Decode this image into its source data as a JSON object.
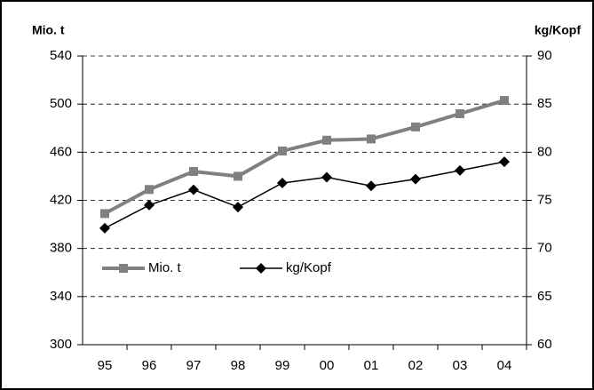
{
  "chart_data": {
    "type": "line",
    "y_label": "Mio. t",
    "y2_label": "kg/Kopf",
    "categories": [
      "95",
      "96",
      "97",
      "98",
      "99",
      "00",
      "01",
      "02",
      "03",
      "04"
    ],
    "series": [
      {
        "name": "Mio. t",
        "color": "#808080",
        "marker": "square",
        "values": [
          409,
          429,
          444,
          440,
          461,
          470,
          471,
          481,
          492,
          503
        ]
      },
      {
        "name": "kg/Kopf",
        "color": "#000000",
        "marker": "diamond",
        "axis": "y2",
        "values": [
          72.1,
          74.5,
          76.1,
          74.3,
          76.8,
          77.4,
          76.5,
          77.2,
          78.1,
          79.0
        ]
      }
    ],
    "ylim": [
      300,
      540
    ],
    "yticks": [
      300,
      340,
      380,
      420,
      460,
      500,
      540
    ],
    "y2lim": [
      60,
      90
    ],
    "y2ticks": [
      60,
      65,
      70,
      75,
      80,
      85,
      90
    ],
    "grid": true,
    "legend": "lower left"
  }
}
